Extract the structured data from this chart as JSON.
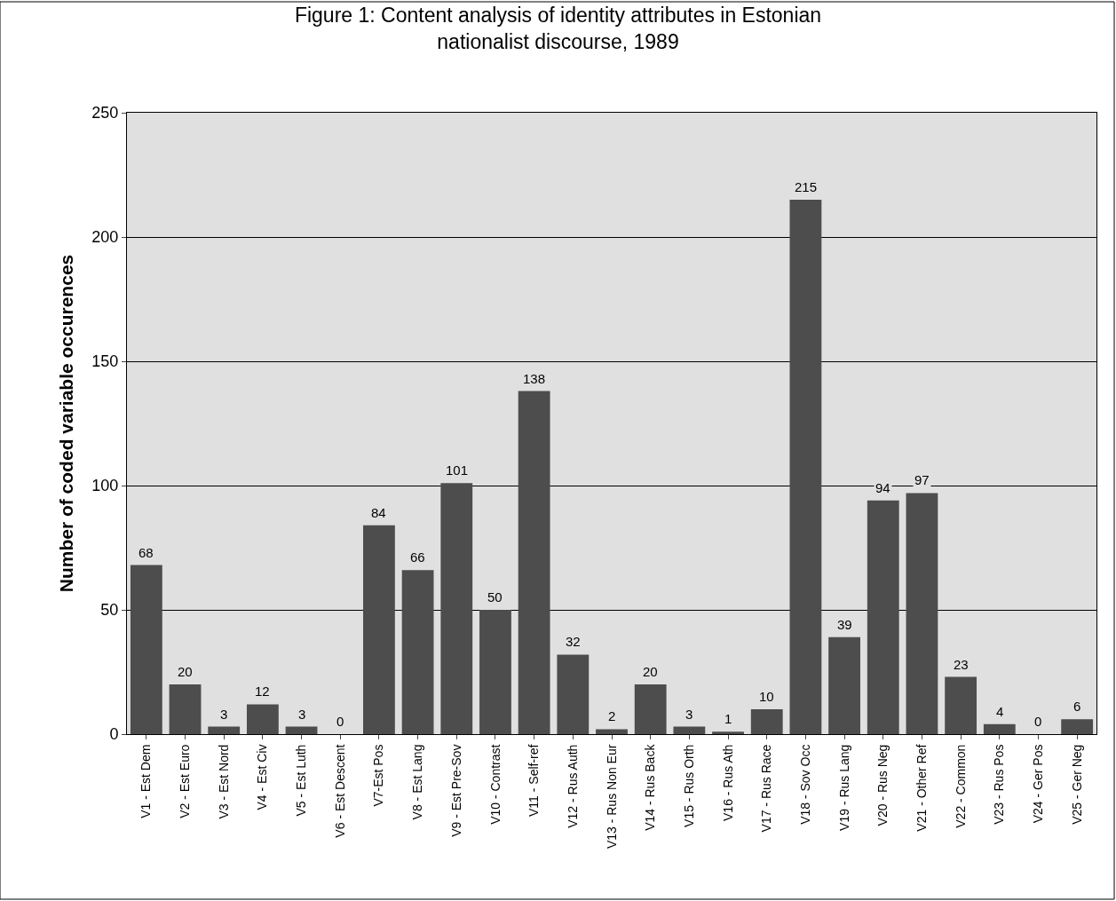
{
  "chart_data": {
    "type": "bar",
    "title": "Figure 1: Content analysis of identity attributes in Estonian nationalist discourse, 1989",
    "ylabel": "Number of coded variable occurences",
    "categories": [
      "V1 - Est Dem",
      "V2 - Est Euro",
      "V3 - Est Nord",
      "V4 - Est Civ",
      "V5 - Est Luth",
      "V6 - Est Descent",
      "V7-Est Pos",
      "V8 - Est Lang",
      "V9 - Est Pre-Sov",
      "V10 - Contrast",
      "V11 - Self-ref",
      "V12 - Rus Auth",
      "V13 - Rus Non Eur",
      "V14 - Rus Back",
      "V15 - Rus Orth",
      "V16 - Rus Ath",
      "V17 - Rus Race",
      "V18 - Sov Occ",
      "V19 - Rus Lang",
      "V20 - Rus Neg",
      "V21 - Other Ref",
      "V22 - Common",
      "V23 - Rus Pos",
      "V24 - Ger Pos",
      "V25 - Ger Neg"
    ],
    "values": [
      68,
      20,
      3,
      12,
      3,
      0,
      84,
      66,
      101,
      50,
      138,
      32,
      2,
      20,
      3,
      1,
      10,
      215,
      39,
      94,
      97,
      23,
      4,
      0,
      6
    ],
    "color": "#4d4d4d",
    "ylim": [
      0,
      250
    ],
    "yticks": [
      0,
      50,
      100,
      150,
      200,
      250
    ],
    "grid": "y",
    "data_labels": true
  }
}
